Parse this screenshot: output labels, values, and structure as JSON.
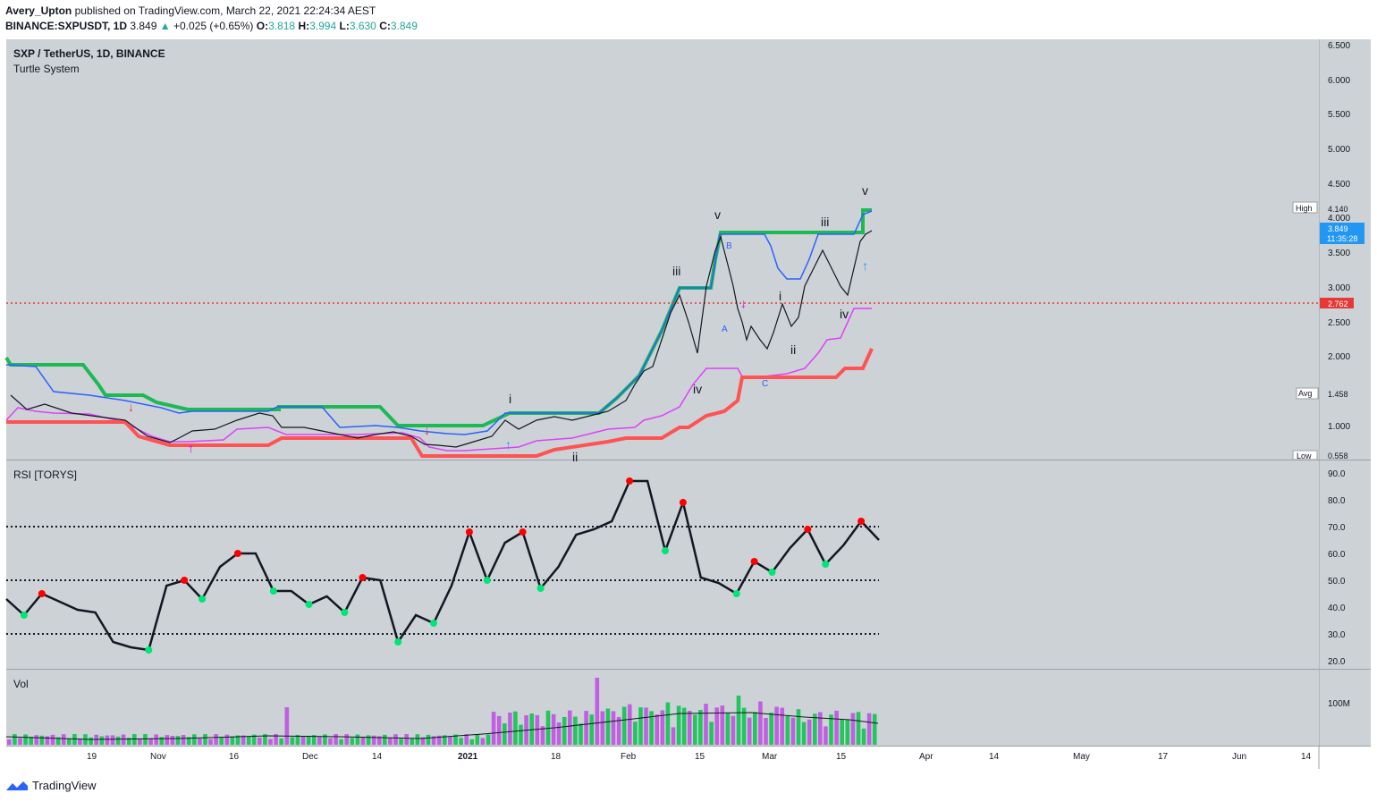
{
  "header": {
    "author": "Avery_Upton",
    "published": "published on TradingView.com, March 22, 2021 22:24:34 AEST",
    "symbol": "BINANCE:SXPUSDT, 1D",
    "last": "3.849",
    "change": "+0.025 (+0.65%)",
    "o_label": "O:",
    "o": "3.818",
    "h_label": "H:",
    "h": "3.994",
    "l_label": "L:",
    "l": "3.630",
    "c_label": "C:",
    "c": "3.849"
  },
  "main_pane": {
    "title": "SXP / TetherUS, 1D, BINANCE",
    "indicator": "Turtle System",
    "price_ticks": [
      "6.500",
      "6.000",
      "5.500",
      "5.000",
      "4.500",
      "4.000",
      "3.500",
      "3.000",
      "2.500",
      "2.000",
      "1.000"
    ],
    "tags": {
      "high_label": "High",
      "high": "4.140",
      "last": "3.849",
      "countdown": "11:35:28",
      "line": "2.762",
      "avg_label": "Avg",
      "avg": "1.458",
      "low_label": "Low",
      "low": "0.558"
    },
    "wave_labels": [
      "i",
      "ii",
      "iii",
      "iv",
      "v",
      "A",
      "B",
      "C",
      "i",
      "ii",
      "iii",
      "iv",
      "v"
    ]
  },
  "rsi_pane": {
    "title": "RSI [TORYS]",
    "ticks": [
      "90.0",
      "80.0",
      "70.0",
      "60.0",
      "50.0",
      "40.0",
      "30.0",
      "20.0"
    ]
  },
  "vol_pane": {
    "title": "Vol",
    "tick": "100M"
  },
  "time_axis": [
    "19",
    "Nov",
    "16",
    "Dec",
    "14",
    "2021",
    "18",
    "Feb",
    "15",
    "Mar",
    "15",
    "Apr",
    "14",
    "May",
    "17",
    "Jun",
    "14"
  ],
  "footer": {
    "brand": "TradingView"
  },
  "colors": {
    "up": "#26a69a",
    "red_line": "#e53935",
    "green_channel": "#1db954",
    "blue_channel": "#2962ff",
    "magenta": "#e040fb",
    "salmon": "#ff5252",
    "rsi_high": "#ff0000",
    "rsi_low": "#00e676"
  },
  "chart_data": {
    "type": "line",
    "price_scale": {
      "min": 0.558,
      "max": 6.5,
      "note": "non-linear axis as printed"
    },
    "close_series": {
      "name": "SXPUSDT close",
      "x": [
        "2020-10-12",
        "2020-10-19",
        "2020-10-26",
        "2020-11-02",
        "2020-11-09",
        "2020-11-16",
        "2020-11-23",
        "2020-11-30",
        "2020-12-07",
        "2020-12-14",
        "2020-12-21",
        "2020-12-28",
        "2021-01-04",
        "2021-01-11",
        "2021-01-18",
        "2021-01-25",
        "2021-02-01",
        "2021-02-08",
        "2021-02-15",
        "2021-02-22",
        "2021-03-01",
        "2021-03-08",
        "2021-03-15",
        "2021-03-22"
      ],
      "values": [
        1.35,
        1.25,
        1.05,
        0.85,
        0.98,
        1.05,
        1.15,
        1.02,
        0.98,
        0.92,
        0.7,
        0.75,
        1.0,
        1.2,
        1.05,
        1.2,
        1.75,
        3.0,
        3.6,
        2.3,
        2.4,
        3.3,
        3.2,
        3.849
      ]
    },
    "rsi": {
      "name": "RSI [TORYS]",
      "levels": [
        30,
        50,
        70
      ],
      "values": [
        43,
        37,
        45,
        42,
        39,
        38,
        27,
        25,
        24,
        48,
        50,
        43,
        55,
        60,
        60,
        46,
        46,
        41,
        44,
        38,
        51,
        50,
        27,
        37,
        34,
        48,
        68,
        50,
        64,
        68,
        47,
        55,
        67,
        69,
        72,
        87,
        87,
        61,
        79,
        51,
        49,
        45,
        57,
        53,
        62,
        69,
        56,
        63,
        72,
        65
      ]
    },
    "volume": {
      "name": "Vol",
      "tick": "100M"
    }
  }
}
